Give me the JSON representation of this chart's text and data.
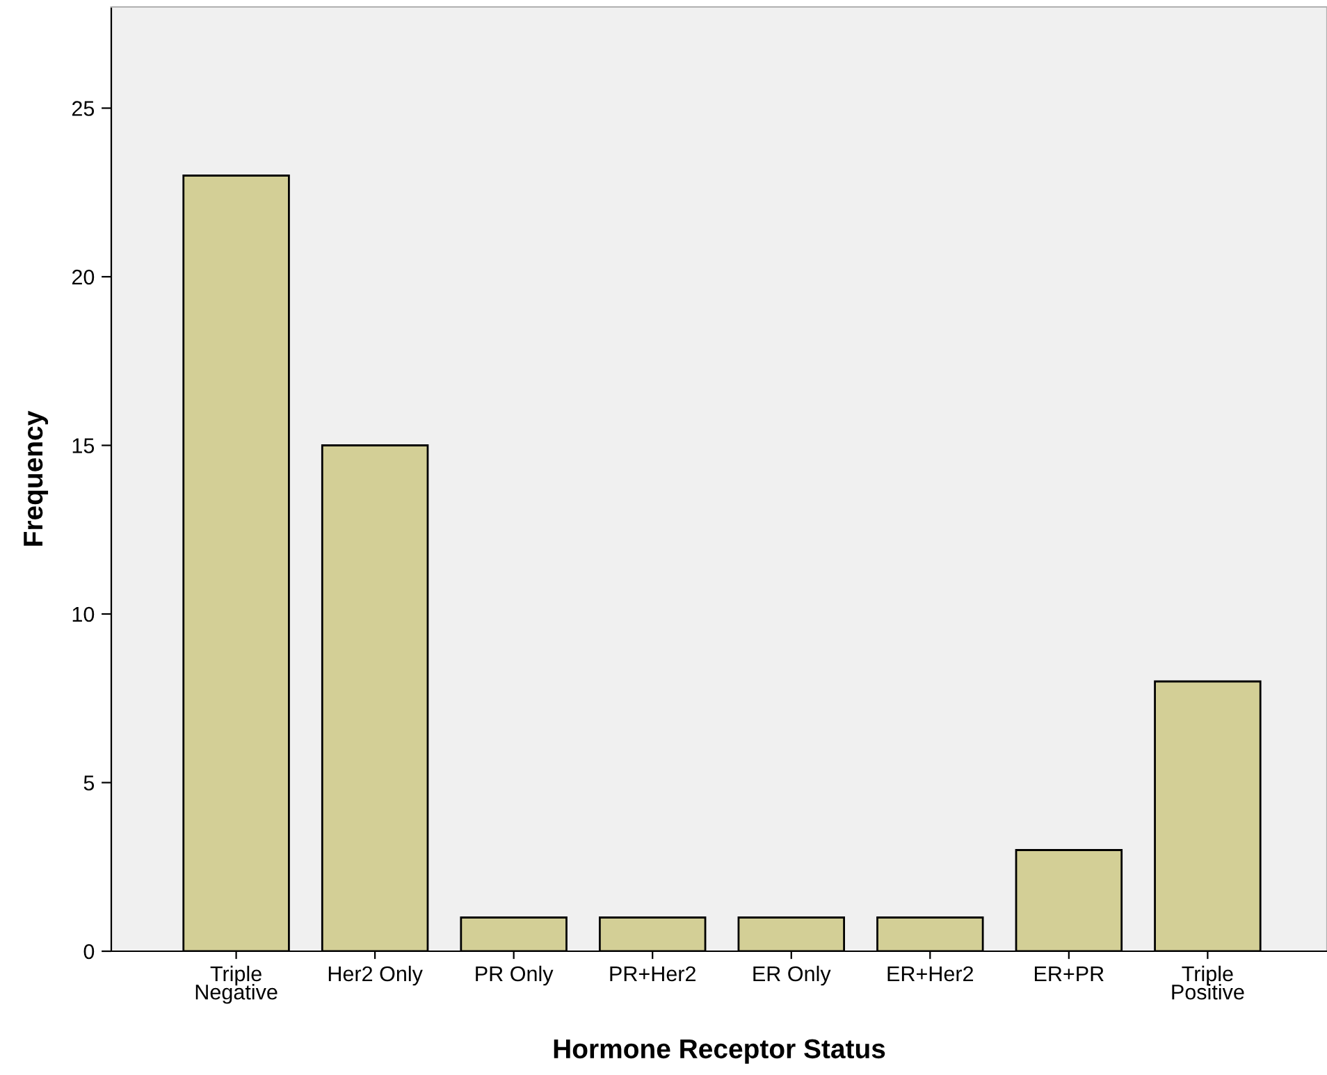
{
  "chart_data": {
    "type": "bar",
    "xlabel": "Hormone Receptor Status",
    "ylabel": "Frequency",
    "categories": [
      "Triple\nNegative",
      "Her2 Only",
      "PR Only",
      "PR+Her2",
      "ER Only",
      "ER+Her2",
      "ER+PR",
      "Triple\nPositive"
    ],
    "values": [
      23,
      15,
      1,
      1,
      1,
      1,
      3,
      8
    ],
    "color": "#d3cf96",
    "ylim": [
      0,
      28
    ],
    "yticks": [
      0,
      5,
      10,
      15,
      20,
      25
    ],
    "grid": false,
    "legend": false
  }
}
